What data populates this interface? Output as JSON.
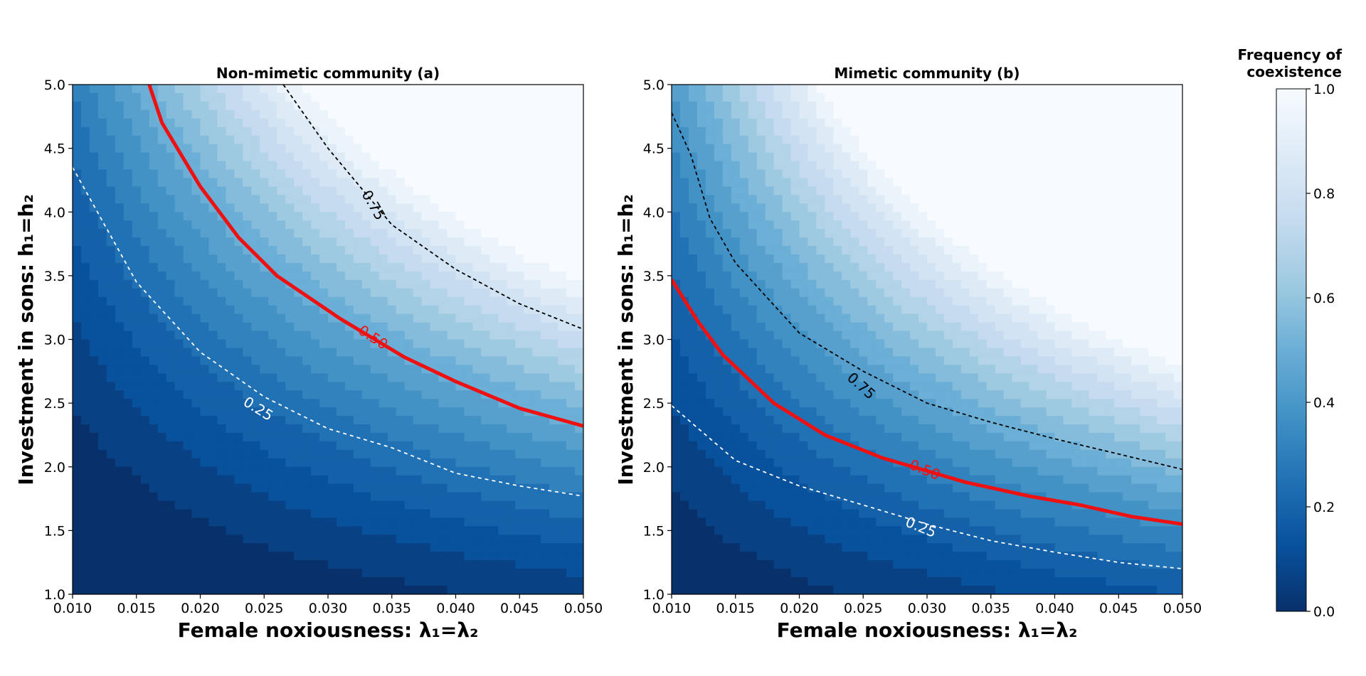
{
  "chart_data": [
    {
      "type": "heatmap",
      "title": "Non-mimetic community (a)",
      "xlabel": "Female noxiousness: λ₁=λ₂",
      "ylabel": "Investment in sons: h₁=h₂",
      "xlim": [
        0.01,
        0.05
      ],
      "ylim": [
        1.0,
        5.0
      ],
      "xticks": [
        "0.010",
        "0.015",
        "0.020",
        "0.025",
        "0.030",
        "0.035",
        "0.040",
        "0.045",
        "0.050"
      ],
      "yticks": [
        "1.0",
        "1.5",
        "2.0",
        "2.5",
        "3.0",
        "3.5",
        "4.0",
        "4.5",
        "5.0"
      ],
      "value_model": "frequency ≈ ((λ/0.01)·h^1.57 − 3.13)/32.5",
      "contour_levels": [
        {
          "level": 0.25,
          "label": "0.25",
          "style": "white-dashed",
          "points": [
            [
              0.01,
              4.35
            ],
            [
              0.015,
              3.45
            ],
            [
              0.02,
              2.9
            ],
            [
              0.025,
              2.55
            ],
            [
              0.03,
              2.3
            ],
            [
              0.035,
              2.15
            ],
            [
              0.04,
              1.95
            ],
            [
              0.045,
              1.85
            ],
            [
              0.05,
              1.77
            ]
          ]
        },
        {
          "level": 0.5,
          "label": "0.50",
          "style": "red-solid",
          "points": [
            [
              0.016,
              5.0
            ],
            [
              0.017,
              4.7
            ],
            [
              0.02,
              4.2
            ],
            [
              0.023,
              3.8
            ],
            [
              0.026,
              3.5
            ],
            [
              0.031,
              3.16
            ],
            [
              0.036,
              2.86
            ],
            [
              0.04,
              2.67
            ],
            [
              0.045,
              2.46
            ],
            [
              0.05,
              2.32
            ]
          ]
        },
        {
          "level": 0.75,
          "label": "0.75",
          "style": "black-dashed",
          "points": [
            [
              0.0265,
              5.0
            ],
            [
              0.03,
              4.5
            ],
            [
              0.035,
              3.9
            ],
            [
              0.04,
              3.55
            ],
            [
              0.045,
              3.28
            ],
            [
              0.05,
              3.08
            ]
          ]
        }
      ]
    },
    {
      "type": "heatmap",
      "title": "Mimetic community (b)",
      "xlabel": "Female noxiousness: λ₁=λ₂",
      "ylabel": "Investment in sons: h₁=h₂",
      "xlim": [
        0.01,
        0.05
      ],
      "ylim": [
        1.0,
        5.0
      ],
      "xticks": [
        "0.010",
        "0.015",
        "0.020",
        "0.025",
        "0.030",
        "0.035",
        "0.040",
        "0.045",
        "0.050"
      ],
      "yticks": [
        "1.0",
        "1.5",
        "2.0",
        "2.5",
        "3.0",
        "3.5",
        "4.0",
        "4.5",
        "5.0"
      ],
      "value_model": "frequency ≈ ((λ/0.01)·h^1.45 − 1.75)/21",
      "contour_levels": [
        {
          "level": 0.25,
          "label": "0.25",
          "style": "white-dashed",
          "points": [
            [
              0.01,
              2.48
            ],
            [
              0.015,
              2.05
            ],
            [
              0.02,
              1.85
            ],
            [
              0.025,
              1.7
            ],
            [
              0.03,
              1.55
            ],
            [
              0.035,
              1.42
            ],
            [
              0.04,
              1.33
            ],
            [
              0.045,
              1.25
            ],
            [
              0.05,
              1.2
            ]
          ]
        },
        {
          "level": 0.5,
          "label": "0.50",
          "style": "red-solid",
          "points": [
            [
              0.01,
              3.47
            ],
            [
              0.012,
              3.15
            ],
            [
              0.014,
              2.88
            ],
            [
              0.018,
              2.5
            ],
            [
              0.022,
              2.25
            ],
            [
              0.0265,
              2.07
            ],
            [
              0.033,
              1.88
            ],
            [
              0.038,
              1.77
            ],
            [
              0.042,
              1.7
            ],
            [
              0.046,
              1.61
            ],
            [
              0.05,
              1.55
            ]
          ]
        },
        {
          "level": 0.75,
          "label": "0.75",
          "style": "black-dashed",
          "points": [
            [
              0.01,
              4.78
            ],
            [
              0.0115,
              4.45
            ],
            [
              0.013,
              3.95
            ],
            [
              0.015,
              3.6
            ],
            [
              0.02,
              3.05
            ],
            [
              0.025,
              2.75
            ],
            [
              0.03,
              2.5
            ],
            [
              0.035,
              2.35
            ],
            [
              0.04,
              2.22
            ],
            [
              0.045,
              2.1
            ],
            [
              0.05,
              1.98
            ]
          ]
        }
      ]
    }
  ],
  "colorbar": {
    "title_line1": "Frequency of",
    "title_line2": "coexistence",
    "ticks": [
      "0.0",
      "0.2",
      "0.4",
      "0.6",
      "0.8",
      "1.0"
    ],
    "colormap": "Blues_r",
    "colors": [
      "#08306b",
      "#08519c",
      "#2171b5",
      "#4292c6",
      "#6baed6",
      "#9ecae1",
      "#c6dbef",
      "#deebf7",
      "#f7fbff"
    ]
  }
}
